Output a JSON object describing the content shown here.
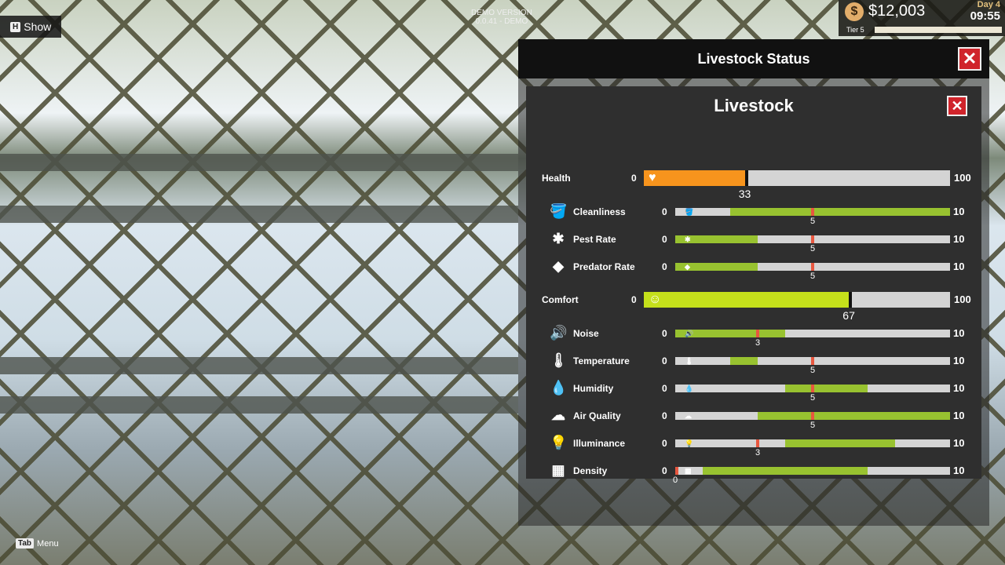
{
  "hud": {
    "show_key": "H",
    "show_label": "Show",
    "demo_line1": "DEMO VERSION",
    "demo_line2": "0.0.41 - DEMO",
    "money": "$12,003",
    "day": "Day 4",
    "time": "09:55",
    "tier": "Tier 5",
    "menu_key": "Tab",
    "menu_label": "Menu"
  },
  "window": {
    "title": "Livestock Status",
    "close": "✕"
  },
  "panel": {
    "title": "Livestock",
    "close": "✕"
  },
  "colors": {
    "health": "#f7941d",
    "comfort": "#c5e01b",
    "good_range": "#98c230",
    "marker": "#e8573f",
    "track": "#d4d4d4"
  },
  "main_stats": [
    {
      "label": "Health",
      "min": "0",
      "max": "100",
      "value": 33,
      "value_label": "33",
      "icon": "heart-icon"
    },
    {
      "label": "Comfort",
      "min": "0",
      "max": "100",
      "value": 67,
      "value_label": "67",
      "icon": "smiley-icon"
    }
  ],
  "health_factors": [
    {
      "label": "Cleanliness",
      "min": "0",
      "max": "10",
      "value": 5,
      "value_label": "5",
      "good_range": [
        2,
        10
      ],
      "icon": "bucket-icon"
    },
    {
      "label": "Pest Rate",
      "min": "0",
      "max": "10",
      "value": 5,
      "value_label": "5",
      "good_range": [
        0,
        3
      ],
      "icon": "bug-icon"
    },
    {
      "label": "Predator Rate",
      "min": "0",
      "max": "10",
      "value": 5,
      "value_label": "5",
      "good_range": [
        0,
        3
      ],
      "icon": "wolf-icon"
    }
  ],
  "comfort_factors": [
    {
      "label": "Noise",
      "min": "0",
      "max": "10",
      "value": 3,
      "value_label": "3",
      "good_range": [
        0,
        4
      ],
      "icon": "speaker-icon"
    },
    {
      "label": "Temperature",
      "min": "0",
      "max": "10",
      "value": 5,
      "value_label": "5",
      "good_range": [
        2,
        3
      ],
      "icon": "thermometer-icon"
    },
    {
      "label": "Humidity",
      "min": "0",
      "max": "10",
      "value": 5,
      "value_label": "5",
      "good_range": [
        4,
        7
      ],
      "icon": "droplet-icon"
    },
    {
      "label": "Air Quality",
      "min": "0",
      "max": "10",
      "value": 5,
      "value_label": "5",
      "good_range": [
        3,
        10
      ],
      "icon": "cloud-icon"
    },
    {
      "label": "Illuminance",
      "min": "0",
      "max": "10",
      "value": 3,
      "value_label": "3",
      "good_range": [
        4,
        8
      ],
      "icon": "lightbulb-icon"
    },
    {
      "label": "Density",
      "min": "0",
      "max": "10",
      "value": 0,
      "value_label": "0",
      "good_range": [
        1,
        7
      ],
      "icon": "grid-icon"
    }
  ]
}
